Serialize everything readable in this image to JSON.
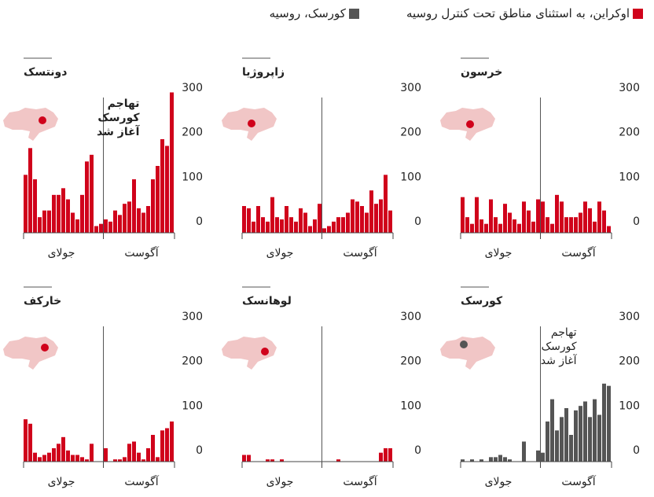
{
  "legend": [
    {
      "name": "اوکراین، به استثنای مناطق تحت کنترل روسیه",
      "color": "#d0021b"
    },
    {
      "name": "کورسک، روسیه",
      "color": "#555555"
    }
  ],
  "chart_data": [
    {
      "type": "bar",
      "title": "خرسون",
      "color": "#d0021b",
      "ylim": [
        0,
        330
      ],
      "yticks": [
        0,
        100,
        200,
        300
      ],
      "x_labels": [
        "جولای",
        "آگوست"
      ],
      "event_index": 17,
      "values": [
        80,
        35,
        20,
        80,
        30,
        20,
        75,
        35,
        20,
        65,
        45,
        30,
        20,
        70,
        50,
        25,
        75,
        70,
        35,
        20,
        85,
        70,
        35,
        35,
        35,
        45,
        70,
        55,
        25,
        70,
        50,
        15
      ]
    },
    {
      "type": "bar",
      "title": "زاپروژیا",
      "color": "#d0021b",
      "ylim": [
        0,
        330
      ],
      "yticks": [
        0,
        100,
        200,
        300
      ],
      "x_labels": [
        "جولای",
        "آگوست"
      ],
      "event_index": 17,
      "values": [
        60,
        55,
        25,
        60,
        35,
        25,
        80,
        35,
        30,
        60,
        35,
        25,
        55,
        45,
        15,
        30,
        65,
        10,
        15,
        25,
        35,
        35,
        45,
        75,
        70,
        60,
        45,
        95,
        65,
        75,
        130,
        50
      ]
    },
    {
      "type": "bar",
      "title": "دونتسک",
      "color": "#d0021b",
      "ylim": [
        0,
        330
      ],
      "yticks": [
        0,
        100,
        200,
        300
      ],
      "x_labels": [
        "جولای",
        "آگوست"
      ],
      "event_index": 17,
      "annotation": [
        "تهاجم",
        "کورسک",
        "آغاز شد"
      ],
      "values": [
        130,
        190,
        120,
        35,
        50,
        50,
        85,
        85,
        100,
        75,
        45,
        30,
        85,
        160,
        175,
        15,
        20,
        30,
        25,
        50,
        40,
        65,
        70,
        120,
        55,
        45,
        60,
        120,
        150,
        210,
        195,
        315
      ]
    },
    {
      "type": "bar",
      "title": "کورسک",
      "color": "#555555",
      "ylim": [
        0,
        330
      ],
      "yticks": [
        0,
        100,
        200,
        300
      ],
      "x_labels": [
        "جولای",
        "آگوست"
      ],
      "event_index": 17,
      "annotation": [
        "تهاجم",
        "کورسک",
        "آغاز شد"
      ],
      "values": [
        5,
        0,
        5,
        0,
        5,
        0,
        10,
        10,
        15,
        10,
        5,
        0,
        0,
        45,
        0,
        0,
        25,
        20,
        90,
        140,
        70,
        100,
        120,
        60,
        115,
        125,
        135,
        100,
        140,
        105,
        175,
        170
      ]
    },
    {
      "type": "bar",
      "title": "لوهانسک",
      "color": "#d0021b",
      "ylim": [
        0,
        330
      ],
      "yticks": [
        0,
        100,
        200,
        300
      ],
      "x_labels": [
        "جولای",
        "آگوست"
      ],
      "event_index": 17,
      "values": [
        15,
        15,
        0,
        0,
        0,
        5,
        5,
        0,
        5,
        0,
        0,
        0,
        0,
        0,
        0,
        0,
        0,
        0,
        0,
        0,
        5,
        0,
        0,
        0,
        0,
        0,
        0,
        0,
        0,
        20,
        30,
        30
      ]
    },
    {
      "type": "bar",
      "title": "خارکف",
      "color": "#d0021b",
      "ylim": [
        0,
        330
      ],
      "yticks": [
        0,
        100,
        200,
        300
      ],
      "x_labels": [
        "جولای",
        "آگوست"
      ],
      "event_index": 17,
      "values": [
        95,
        85,
        20,
        10,
        15,
        20,
        30,
        40,
        55,
        25,
        15,
        15,
        10,
        5,
        40,
        0,
        0,
        30,
        0,
        5,
        5,
        10,
        40,
        45,
        20,
        5,
        30,
        60,
        10,
        70,
        75,
        90
      ]
    }
  ]
}
